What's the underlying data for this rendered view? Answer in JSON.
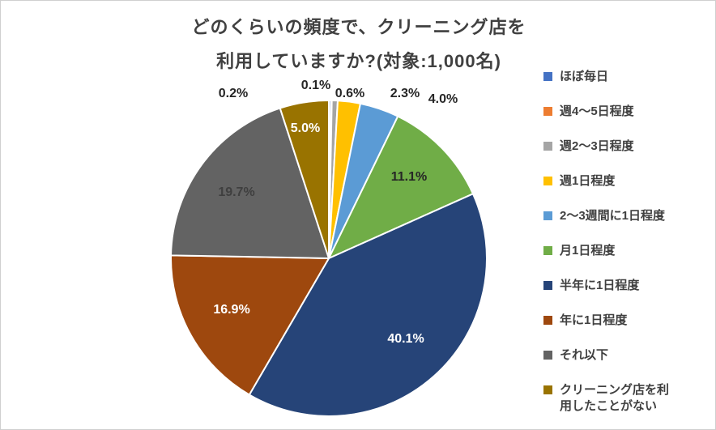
{
  "title": {
    "line1": "どのくらいの頻度で、クリーニング店を",
    "line2": "利用していますか?(対象:1,000名)"
  },
  "chart_data": {
    "type": "pie",
    "title": "どのくらいの頻度で、クリーニング店を利用していますか?(対象:1,000名)",
    "categories": [
      "ほぼ毎日",
      "週4〜5日程度",
      "週2〜3日程度",
      "週1日程度",
      "2〜3週間に1日程度",
      "月1日程度",
      "半年に1日程度",
      "年に1日程度",
      "それ以下",
      "クリーニング店を利用したことがない"
    ],
    "values": [
      0.2,
      0.1,
      0.6,
      2.3,
      4.0,
      11.1,
      40.1,
      16.9,
      19.7,
      5.0
    ],
    "unit": "%",
    "data_labels": [
      "0.2%",
      "0.1%",
      "0.6%",
      "2.3%",
      "4.0%",
      "11.1%",
      "40.1%",
      "16.9%",
      "19.7%",
      "5.0%"
    ],
    "colors": [
      "#4472C4",
      "#ED7D31",
      "#A5A5A5",
      "#FFC000",
      "#5B9BD5",
      "#70AD47",
      "#264478",
      "#9E480E",
      "#636363",
      "#997300"
    ],
    "data_label_colors": [
      "#262626",
      "#262626",
      "#262626",
      "#262626",
      "#262626",
      "#262626",
      "#FFFFFF",
      "#FFFFFF",
      "#3F3F3F",
      "#FFFFFF"
    ],
    "title_color": "#404040",
    "legend_text_color": "#404040",
    "background_color": "#FFFFFF",
    "legend_position": "right",
    "start_angle_deg": -90,
    "direction": "clockwise",
    "outside_label_indices": [
      0,
      1,
      2,
      3,
      4
    ]
  }
}
